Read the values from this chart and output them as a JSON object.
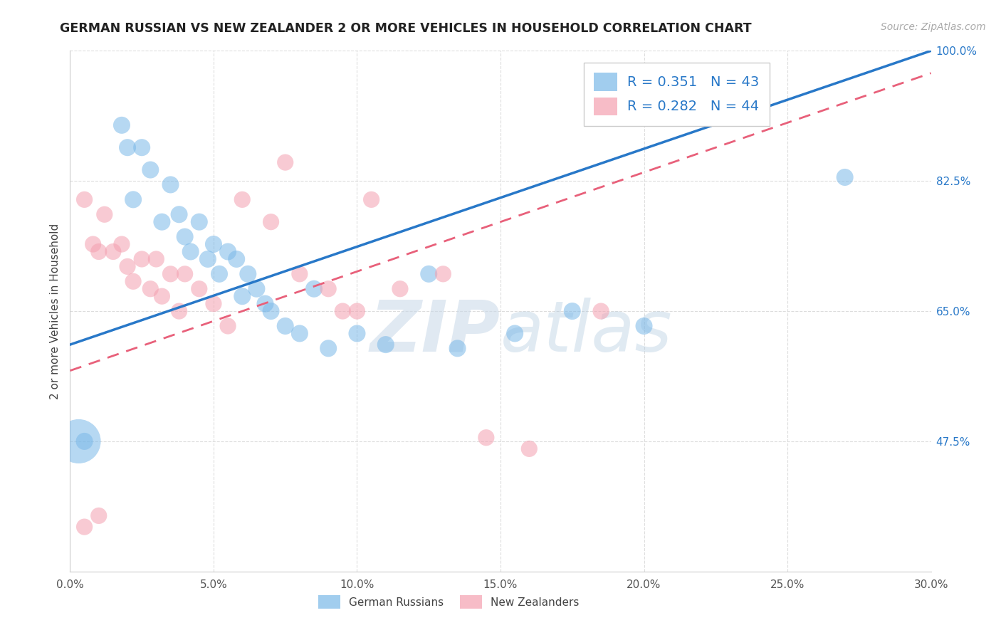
{
  "title": "GERMAN RUSSIAN VS NEW ZEALANDER 2 OR MORE VEHICLES IN HOUSEHOLD CORRELATION CHART",
  "source": "Source: ZipAtlas.com",
  "ylabel": "2 or more Vehicles in Household",
  "xlim": [
    0.0,
    30.0
  ],
  "ylim": [
    30.0,
    100.0
  ],
  "xticks": [
    0.0,
    5.0,
    10.0,
    15.0,
    20.0,
    25.0,
    30.0
  ],
  "yticks": [
    47.5,
    65.0,
    82.5,
    100.0
  ],
  "yticks_right": [
    47.5,
    65.0,
    82.5,
    100.0
  ],
  "legend1_label": "R = 0.351   N = 43",
  "legend2_label": "R = 0.282   N = 44",
  "legend_bottom1": "German Russians",
  "legend_bottom2": "New Zealanders",
  "blue_color": "#7ab8e8",
  "pink_color": "#f4a0b0",
  "blue_line_color": "#2878c8",
  "pink_line_color": "#e8607a",
  "watermark_zip": "ZIP",
  "watermark_atlas": "atlas",
  "background_color": "#ffffff",
  "grid_color": "#dddddd",
  "blue_scatter_x": [
    0.5,
    1.8,
    2.0,
    2.2,
    2.5,
    2.8,
    3.2,
    3.5,
    3.8,
    4.0,
    4.2,
    4.5,
    4.8,
    5.0,
    5.2,
    5.5,
    5.8,
    6.0,
    6.2,
    6.5,
    6.8,
    7.0,
    7.5,
    8.0,
    8.5,
    9.0,
    10.0,
    11.0,
    12.5,
    13.5,
    15.5,
    17.5,
    20.0,
    27.0
  ],
  "blue_scatter_y": [
    47.5,
    90.0,
    87.0,
    80.0,
    87.0,
    84.0,
    77.0,
    82.0,
    78.0,
    75.0,
    73.0,
    77.0,
    72.0,
    74.0,
    70.0,
    73.0,
    72.0,
    67.0,
    70.0,
    68.0,
    66.0,
    65.0,
    63.0,
    62.0,
    68.0,
    60.0,
    62.0,
    60.5,
    70.0,
    60.0,
    62.0,
    65.0,
    63.0,
    83.0
  ],
  "blue_large_x": [
    0.3
  ],
  "blue_large_y": [
    47.5
  ],
  "pink_scatter_x": [
    0.5,
    0.8,
    1.0,
    1.2,
    1.5,
    1.8,
    2.0,
    2.2,
    2.5,
    2.8,
    3.0,
    3.2,
    3.5,
    3.8,
    4.0,
    4.5,
    5.0,
    5.5,
    6.0,
    7.0,
    8.0,
    9.0,
    10.0,
    11.5,
    13.0,
    14.5,
    16.0,
    18.5
  ],
  "pink_scatter_y": [
    80.0,
    74.0,
    73.0,
    78.0,
    73.0,
    74.0,
    71.0,
    69.0,
    72.0,
    68.0,
    72.0,
    67.0,
    70.0,
    65.0,
    70.0,
    68.0,
    66.0,
    63.0,
    80.0,
    77.0,
    70.0,
    68.0,
    65.0,
    68.0,
    70.0,
    48.0,
    46.5,
    65.0
  ],
  "pink_outlier_x": [
    0.5,
    1.0,
    7.5,
    9.5,
    10.5
  ],
  "pink_outlier_y": [
    36.0,
    37.5,
    85.0,
    65.0,
    80.0
  ],
  "blue_line_x0": 0.0,
  "blue_line_y0": 60.5,
  "blue_line_x1": 30.0,
  "blue_line_y1": 100.0,
  "pink_line_x0": 0.0,
  "pink_line_y0": 57.0,
  "pink_line_x1": 30.0,
  "pink_line_y1": 97.0
}
